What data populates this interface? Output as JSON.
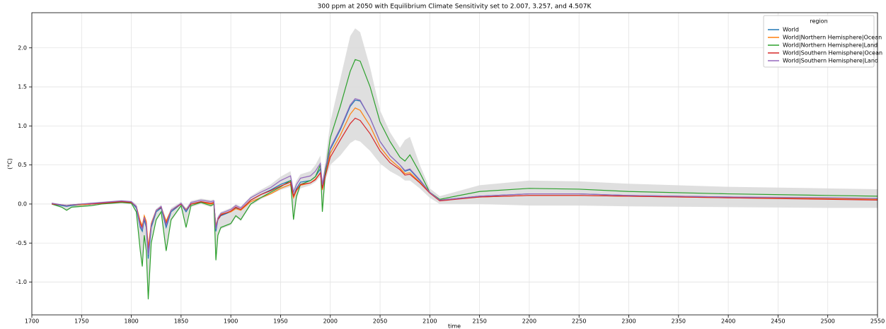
{
  "chart_data": {
    "type": "line",
    "title": "300 ppm at 2050 with Equilibrium Climate Sensitivity set to 2.007, 3.257, and 4.507K",
    "x_label": "time",
    "y_label": "(°C)",
    "legend_title": "region",
    "legend": "upper right",
    "grid": true,
    "xlim": [
      1700,
      2550
    ],
    "ylim": [
      -1.42,
      2.45
    ],
    "xticks": [
      1700,
      1750,
      1800,
      1850,
      1900,
      1950,
      2000,
      2050,
      2100,
      2150,
      2200,
      2250,
      2300,
      2350,
      2400,
      2450,
      2500,
      2550
    ],
    "yticks": [
      {
        "value": -1.0,
        "label": "-1.0"
      },
      -0.5,
      {
        "value": 0.0,
        "label": "0.0"
      },
      0.5,
      {
        "value": 1.0,
        "label": "1.0"
      },
      1.5,
      {
        "value": 2.0,
        "label": "2.0"
      }
    ],
    "x": [
      1720,
      1730,
      1735,
      1740,
      1750,
      1760,
      1770,
      1780,
      1790,
      1800,
      1805,
      1809,
      1811,
      1813,
      1815,
      1817,
      1820,
      1825,
      1830,
      1835,
      1840,
      1850,
      1855,
      1860,
      1870,
      1880,
      1883,
      1885,
      1887,
      1890,
      1900,
      1905,
      1910,
      1920,
      1930,
      1940,
      1950,
      1960,
      1963,
      1966,
      1970,
      1980,
      1985,
      1990,
      1992,
      1995,
      2000,
      2010,
      2020,
      2025,
      2030,
      2040,
      2050,
      2060,
      2070,
      2075,
      2080,
      2090,
      2100,
      2110,
      2150,
      2200,
      2250,
      2300,
      2400,
      2500,
      2550
    ],
    "band": {
      "color": "#d9d9d9",
      "lower": [
        -0.01,
        -0.05,
        -0.09,
        -0.05,
        -0.04,
        -0.03,
        -0.01,
        0.0,
        0.01,
        0.0,
        -0.11,
        -0.62,
        -0.82,
        -0.42,
        -0.62,
        -1.24,
        -0.52,
        -0.22,
        -0.12,
        -0.62,
        -0.22,
        -0.04,
        -0.32,
        -0.04,
        0.0,
        -0.04,
        -0.02,
        -0.74,
        -0.42,
        -0.32,
        -0.27,
        -0.17,
        -0.22,
        -0.02,
        0.06,
        0.12,
        0.18,
        0.22,
        -0.22,
        0.06,
        0.2,
        0.24,
        0.28,
        0.35,
        -0.12,
        0.3,
        0.5,
        0.62,
        0.78,
        0.82,
        0.8,
        0.68,
        0.52,
        0.42,
        0.35,
        0.3,
        0.3,
        0.2,
        0.08,
        0.0,
        0.0,
        -0.02,
        -0.02,
        -0.03,
        -0.04,
        -0.05,
        -0.05
      ],
      "upper": [
        0.02,
        0.0,
        0.0,
        0.0,
        0.01,
        0.02,
        0.03,
        0.04,
        0.05,
        0.04,
        0.0,
        -0.2,
        -0.25,
        -0.13,
        -0.2,
        -0.52,
        -0.22,
        -0.06,
        -0.01,
        -0.2,
        -0.05,
        0.03,
        -0.05,
        0.04,
        0.07,
        0.05,
        0.06,
        -0.25,
        -0.15,
        -0.1,
        -0.05,
        0.0,
        -0.03,
        0.1,
        0.18,
        0.25,
        0.35,
        0.42,
        0.2,
        0.3,
        0.38,
        0.42,
        0.5,
        0.62,
        0.3,
        0.55,
        1.05,
        1.6,
        2.15,
        2.25,
        2.2,
        1.75,
        1.2,
        0.92,
        0.72,
        0.82,
        0.86,
        0.5,
        0.2,
        0.1,
        0.24,
        0.3,
        0.29,
        0.26,
        0.22,
        0.2,
        0.19
      ]
    },
    "series": [
      {
        "name": "World",
        "color": "#1f77b4",
        "values": [
          0.0,
          -0.02,
          -0.03,
          -0.02,
          -0.01,
          0.0,
          0.01,
          0.02,
          0.03,
          0.02,
          -0.05,
          -0.3,
          -0.35,
          -0.2,
          -0.3,
          -0.7,
          -0.3,
          -0.1,
          -0.05,
          -0.3,
          -0.1,
          0.0,
          -0.1,
          0.0,
          0.03,
          0.0,
          0.02,
          -0.35,
          -0.2,
          -0.15,
          -0.1,
          -0.05,
          -0.08,
          0.05,
          0.12,
          0.18,
          0.25,
          0.3,
          0.1,
          0.2,
          0.28,
          0.3,
          0.35,
          0.45,
          0.2,
          0.4,
          0.7,
          0.95,
          1.25,
          1.33,
          1.32,
          1.1,
          0.8,
          0.62,
          0.5,
          0.42,
          0.44,
          0.3,
          0.15,
          0.05,
          0.1,
          0.13,
          0.13,
          0.11,
          0.09,
          0.07,
          0.07
        ]
      },
      {
        "name": "World|Northern Hemisphere|Ocean",
        "color": "#ff7f0e",
        "values": [
          0.0,
          -0.01,
          -0.02,
          -0.01,
          -0.01,
          0.0,
          0.01,
          0.02,
          0.03,
          0.02,
          -0.03,
          -0.22,
          -0.28,
          -0.15,
          -0.22,
          -0.55,
          -0.25,
          -0.08,
          -0.04,
          -0.22,
          -0.08,
          0.0,
          -0.07,
          0.0,
          0.02,
          0.0,
          0.01,
          -0.28,
          -0.18,
          -0.13,
          -0.1,
          -0.06,
          -0.08,
          0.03,
          0.08,
          0.13,
          0.2,
          0.25,
          0.08,
          0.17,
          0.24,
          0.27,
          0.32,
          0.4,
          0.18,
          0.36,
          0.65,
          0.88,
          1.15,
          1.23,
          1.2,
          1.0,
          0.73,
          0.57,
          0.46,
          0.39,
          0.4,
          0.28,
          0.14,
          0.05,
          0.09,
          0.11,
          0.11,
          0.1,
          0.08,
          0.07,
          0.06
        ]
      },
      {
        "name": "World|Northern Hemisphere|Land",
        "color": "#2ca02c",
        "values": [
          0.0,
          -0.04,
          -0.08,
          -0.04,
          -0.03,
          -0.02,
          0.0,
          0.01,
          0.02,
          0.01,
          -0.1,
          -0.6,
          -0.8,
          -0.4,
          -0.6,
          -1.22,
          -0.5,
          -0.2,
          -0.1,
          -0.6,
          -0.2,
          -0.02,
          -0.3,
          -0.02,
          0.02,
          -0.02,
          0.0,
          -0.72,
          -0.4,
          -0.3,
          -0.25,
          -0.15,
          -0.2,
          0.0,
          0.08,
          0.15,
          0.22,
          0.3,
          -0.2,
          0.1,
          0.25,
          0.3,
          0.35,
          0.5,
          -0.1,
          0.4,
          0.85,
          1.25,
          1.7,
          1.85,
          1.83,
          1.5,
          1.05,
          0.8,
          0.6,
          0.55,
          0.63,
          0.4,
          0.15,
          0.06,
          0.16,
          0.2,
          0.19,
          0.16,
          0.13,
          0.11,
          0.1
        ]
      },
      {
        "name": "World|Southern Hemisphere|Ocean",
        "color": "#d62728",
        "values": [
          0.0,
          -0.01,
          -0.02,
          -0.01,
          0.0,
          0.0,
          0.01,
          0.02,
          0.03,
          0.02,
          -0.03,
          -0.25,
          -0.3,
          -0.18,
          -0.25,
          -0.6,
          -0.27,
          -0.08,
          -0.04,
          -0.25,
          -0.08,
          0.0,
          -0.08,
          0.0,
          0.03,
          0.01,
          0.02,
          -0.3,
          -0.2,
          -0.14,
          -0.09,
          -0.04,
          -0.07,
          0.05,
          0.12,
          0.17,
          0.23,
          0.28,
          0.1,
          0.18,
          0.25,
          0.27,
          0.31,
          0.4,
          0.2,
          0.36,
          0.6,
          0.82,
          1.03,
          1.1,
          1.07,
          0.9,
          0.68,
          0.53,
          0.44,
          0.37,
          0.38,
          0.27,
          0.14,
          0.04,
          0.09,
          0.11,
          0.11,
          0.1,
          0.08,
          0.06,
          0.05
        ]
      },
      {
        "name": "World|Southern Hemisphere|Land",
        "color": "#9467bd",
        "values": [
          0.01,
          -0.01,
          -0.02,
          -0.01,
          0.0,
          0.01,
          0.02,
          0.03,
          0.04,
          0.03,
          -0.03,
          -0.28,
          -0.32,
          -0.17,
          -0.27,
          -0.65,
          -0.27,
          -0.08,
          -0.03,
          -0.27,
          -0.08,
          0.01,
          -0.08,
          0.02,
          0.05,
          0.03,
          0.04,
          -0.32,
          -0.18,
          -0.12,
          -0.07,
          -0.02,
          -0.05,
          0.08,
          0.15,
          0.21,
          0.3,
          0.36,
          0.15,
          0.25,
          0.33,
          0.36,
          0.42,
          0.52,
          0.25,
          0.46,
          0.72,
          0.97,
          1.27,
          1.35,
          1.33,
          1.1,
          0.8,
          0.62,
          0.5,
          0.43,
          0.45,
          0.31,
          0.15,
          0.05,
          0.1,
          0.13,
          0.13,
          0.11,
          0.09,
          0.08,
          0.07
        ]
      }
    ]
  }
}
